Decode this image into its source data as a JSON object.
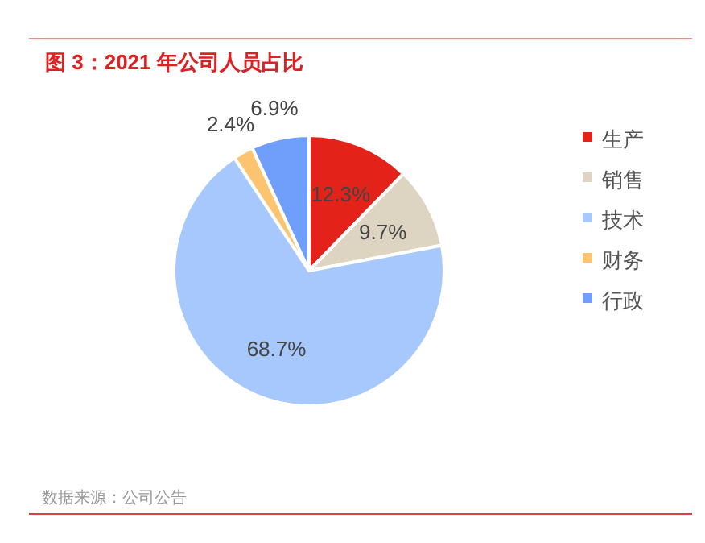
{
  "chart_data": {
    "type": "pie",
    "title": "图 3：2021 年公司人员占比",
    "categories": [
      "生产",
      "销售",
      "技术",
      "财务",
      "行政"
    ],
    "values": [
      12.3,
      9.7,
      68.7,
      2.4,
      6.9
    ],
    "colors": [
      "#e32219",
      "#ddd5c1",
      "#a6c8fd",
      "#fdc46f",
      "#6f9ffb"
    ],
    "value_labels": [
      "12.3%",
      "9.7%",
      "68.7%",
      "2.4%",
      "6.9%"
    ],
    "legend": "right",
    "annotations": [
      "数据来源：公司公告"
    ]
  }
}
